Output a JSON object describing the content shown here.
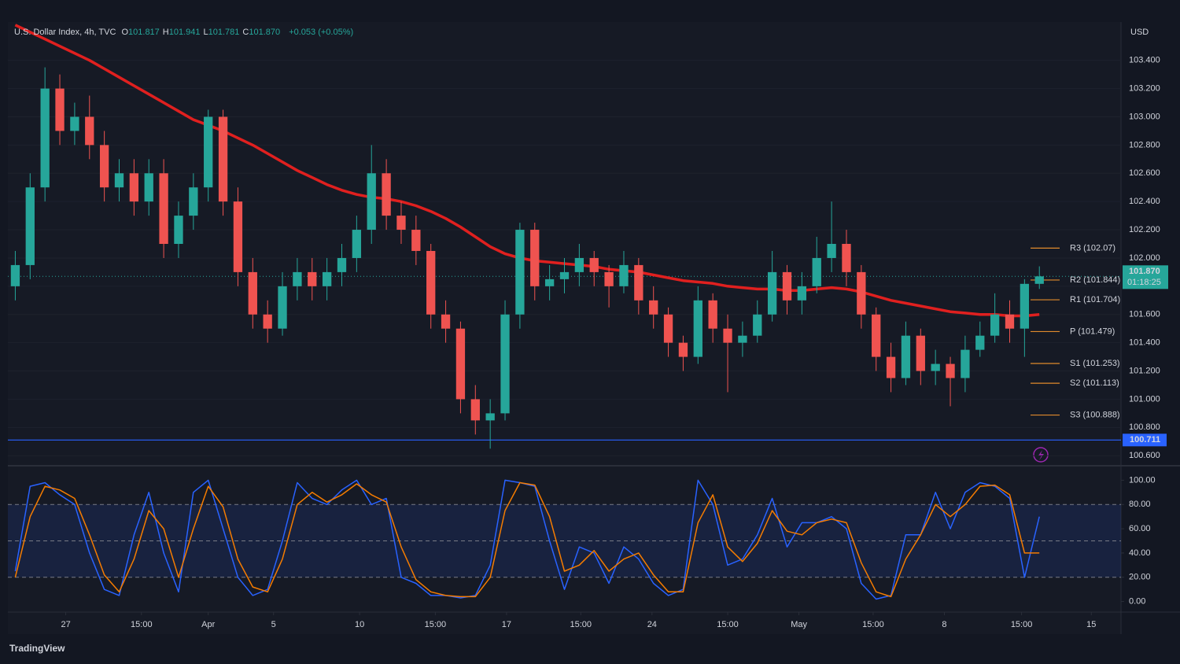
{
  "header": {
    "symbol": "U.S. Dollar Index, 4h, TVC",
    "ohlc": [
      {
        "key": "O",
        "text": "101.817"
      },
      {
        "key": "H",
        "text": "101.941"
      },
      {
        "key": "L",
        "text": "101.781"
      },
      {
        "key": "C",
        "text": "101.870"
      }
    ],
    "change": "+0.053 (+0.05%)"
  },
  "footer": {
    "brand": "TradingView"
  },
  "chart_data": [
    {
      "type": "candlestick",
      "currency": "USD",
      "up_color": "#26a69a",
      "down_color": "#ef5350",
      "candles": [
        [
          101.8,
          102.05,
          101.7,
          101.95
        ],
        [
          101.95,
          102.6,
          101.85,
          102.5
        ],
        [
          102.5,
          103.35,
          102.4,
          103.2
        ],
        [
          103.2,
          103.3,
          102.8,
          102.9
        ],
        [
          102.9,
          103.1,
          102.8,
          103.0
        ],
        [
          103.0,
          103.15,
          102.7,
          102.8
        ],
        [
          102.8,
          102.9,
          102.4,
          102.5
        ],
        [
          102.5,
          102.7,
          102.4,
          102.6
        ],
        [
          102.6,
          102.7,
          102.3,
          102.4
        ],
        [
          102.4,
          102.7,
          102.3,
          102.6
        ],
        [
          102.6,
          102.7,
          102.0,
          102.1
        ],
        [
          102.1,
          102.4,
          102.0,
          102.3
        ],
        [
          102.3,
          102.6,
          102.2,
          102.5
        ],
        [
          102.5,
          103.05,
          102.4,
          103.0
        ],
        [
          103.0,
          103.05,
          102.3,
          102.4
        ],
        [
          102.4,
          102.5,
          101.8,
          101.9
        ],
        [
          101.9,
          102.0,
          101.5,
          101.6
        ],
        [
          101.6,
          101.7,
          101.4,
          101.5
        ],
        [
          101.5,
          101.9,
          101.45,
          101.8
        ],
        [
          101.8,
          102.0,
          101.7,
          101.9
        ],
        [
          101.9,
          102.0,
          101.7,
          101.8
        ],
        [
          101.8,
          102.0,
          101.7,
          101.9
        ],
        [
          101.9,
          102.1,
          101.8,
          102.0
        ],
        [
          102.0,
          102.3,
          101.9,
          102.2
        ],
        [
          102.2,
          102.8,
          102.1,
          102.6
        ],
        [
          102.6,
          102.7,
          102.2,
          102.3
        ],
        [
          102.3,
          102.4,
          102.1,
          102.2
        ],
        [
          102.2,
          102.3,
          101.95,
          102.05
        ],
        [
          102.05,
          102.1,
          101.5,
          101.6
        ],
        [
          101.6,
          101.7,
          101.4,
          101.5
        ],
        [
          101.5,
          101.55,
          100.9,
          101.0
        ],
        [
          101.0,
          101.1,
          100.75,
          100.85
        ],
        [
          100.85,
          101.0,
          100.65,
          100.9
        ],
        [
          100.9,
          101.7,
          100.85,
          101.6
        ],
        [
          101.6,
          102.25,
          101.5,
          102.2
        ],
        [
          102.2,
          102.25,
          101.7,
          101.8
        ],
        [
          101.8,
          101.95,
          101.7,
          101.85
        ],
        [
          101.85,
          102.0,
          101.75,
          101.9
        ],
        [
          101.9,
          102.1,
          101.8,
          102.0
        ],
        [
          102.0,
          102.05,
          101.8,
          101.9
        ],
        [
          101.9,
          101.95,
          101.65,
          101.8
        ],
        [
          101.8,
          102.05,
          101.75,
          101.95
        ],
        [
          101.95,
          102.0,
          101.6,
          101.7
        ],
        [
          101.7,
          101.8,
          101.5,
          101.6
        ],
        [
          101.6,
          101.65,
          101.3,
          101.4
        ],
        [
          101.4,
          101.45,
          101.2,
          101.3
        ],
        [
          101.3,
          101.8,
          101.25,
          101.7
        ],
        [
          101.7,
          101.75,
          101.4,
          101.5
        ],
        [
          101.5,
          101.6,
          101.05,
          101.4
        ],
        [
          101.4,
          101.55,
          101.3,
          101.45
        ],
        [
          101.45,
          101.7,
          101.4,
          101.6
        ],
        [
          101.6,
          102.05,
          101.55,
          101.9
        ],
        [
          101.9,
          101.95,
          101.6,
          101.7
        ],
        [
          101.7,
          101.9,
          101.6,
          101.8
        ],
        [
          101.8,
          102.15,
          101.75,
          102.0
        ],
        [
          102.0,
          102.4,
          101.9,
          102.1
        ],
        [
          102.1,
          102.2,
          101.8,
          101.9
        ],
        [
          101.9,
          101.95,
          101.5,
          101.6
        ],
        [
          101.6,
          101.65,
          101.2,
          101.3
        ],
        [
          101.3,
          101.4,
          101.05,
          101.15
        ],
        [
          101.15,
          101.55,
          101.1,
          101.45
        ],
        [
          101.45,
          101.5,
          101.1,
          101.2
        ],
        [
          101.2,
          101.35,
          101.1,
          101.25
        ],
        [
          101.25,
          101.3,
          100.95,
          101.15
        ],
        [
          101.15,
          101.45,
          101.05,
          101.35
        ],
        [
          101.35,
          101.55,
          101.3,
          101.45
        ],
        [
          101.45,
          101.75,
          101.4,
          101.6
        ],
        [
          101.6,
          101.7,
          101.4,
          101.5
        ],
        [
          101.5,
          101.85,
          101.3,
          101.817
        ],
        [
          101.817,
          101.941,
          101.781,
          101.87
        ]
      ],
      "series": [
        {
          "color": "#e0201f",
          "values": [
            103.65,
            103.6,
            103.55,
            103.5,
            103.45,
            103.4,
            103.34,
            103.28,
            103.22,
            103.16,
            103.1,
            103.04,
            102.98,
            102.94,
            102.9,
            102.85,
            102.8,
            102.74,
            102.68,
            102.62,
            102.57,
            102.52,
            102.48,
            102.45,
            102.43,
            102.42,
            102.4,
            102.37,
            102.33,
            102.28,
            102.22,
            102.15,
            102.08,
            102.03,
            102.0,
            101.98,
            101.97,
            101.96,
            101.95,
            101.94,
            101.92,
            101.91,
            101.9,
            101.88,
            101.86,
            101.84,
            101.83,
            101.82,
            101.8,
            101.79,
            101.78,
            101.78,
            101.77,
            101.77,
            101.78,
            101.79,
            101.78,
            101.76,
            101.73,
            101.7,
            101.68,
            101.66,
            101.64,
            101.62,
            101.61,
            101.6,
            101.6,
            101.59,
            101.59,
            101.6
          ]
        }
      ],
      "xlim": [
        0,
        75
      ],
      "ylim": [
        100.54,
        103.66
      ],
      "yticks": [
        {
          "value": 100.6,
          "label": "100.600"
        },
        {
          "value": 100.8,
          "label": "100.800"
        },
        {
          "value": 101.0,
          "label": "101.000"
        },
        {
          "value": 101.2,
          "label": "101.200"
        },
        {
          "value": 101.4,
          "label": "101.400"
        },
        {
          "value": 101.6,
          "label": "101.600"
        },
        {
          "value": 101.8,
          "label": "101.800"
        },
        {
          "value": 102.0,
          "label": "102.000"
        },
        {
          "value": 102.2,
          "label": "102.200"
        },
        {
          "value": 102.4,
          "label": "102.400"
        },
        {
          "value": 102.6,
          "label": "102.600"
        },
        {
          "value": 102.8,
          "label": "102.800"
        },
        {
          "value": 103.0,
          "label": "103.000"
        },
        {
          "value": 103.2,
          "label": "103.200"
        },
        {
          "value": 103.4,
          "label": "103.400"
        }
      ],
      "pivot_color": "#e08a2c",
      "pivots": [
        {
          "value": 102.07,
          "label": "R3 (102.07)"
        },
        {
          "value": 101.844,
          "label": "R2 (101.844)"
        },
        {
          "value": 101.704,
          "label": "R1 (101.704)"
        },
        {
          "value": 101.479,
          "label": "P (101.479)"
        },
        {
          "value": 101.253,
          "label": "S1 (101.253)"
        },
        {
          "value": 101.113,
          "label": "S2 (101.113)"
        },
        {
          "value": 100.888,
          "label": "S3 (100.888)"
        }
      ],
      "hline": {
        "value": 100.711,
        "label": "100.711",
        "color": "#2962ff"
      },
      "last_price": {
        "value": 101.87,
        "label": "101.870",
        "countdown": "01:18:25",
        "color": "#26a69a"
      }
    },
    {
      "type": "line",
      "series": [
        {
          "color": "#2962ff",
          "values": [
            25,
            95,
            98,
            88,
            80,
            40,
            10,
            5,
            55,
            90,
            40,
            8,
            90,
            100,
            60,
            20,
            5,
            10,
            50,
            98,
            85,
            80,
            92,
            100,
            80,
            85,
            20,
            15,
            5,
            5,
            3,
            5,
            30,
            100,
            98,
            95,
            50,
            10,
            45,
            40,
            15,
            45,
            35,
            15,
            5,
            10,
            100,
            80,
            30,
            35,
            55,
            85,
            45,
            65,
            65,
            70,
            60,
            15,
            2,
            5,
            55,
            55,
            90,
            60,
            90,
            98,
            95,
            85,
            20,
            70
          ]
        },
        {
          "color": "#f57c00",
          "values": [
            20,
            70,
            95,
            92,
            85,
            55,
            22,
            8,
            35,
            75,
            60,
            20,
            60,
            95,
            78,
            35,
            12,
            8,
            35,
            80,
            90,
            82,
            88,
            97,
            88,
            82,
            45,
            18,
            8,
            5,
            4,
            4,
            20,
            75,
            98,
            96,
            70,
            25,
            30,
            42,
            25,
            35,
            40,
            22,
            8,
            8,
            65,
            88,
            45,
            33,
            48,
            75,
            58,
            55,
            65,
            68,
            65,
            32,
            8,
            4,
            35,
            55,
            80,
            70,
            80,
            95,
            96,
            88,
            40,
            40
          ]
        }
      ],
      "xlim": [
        0,
        75
      ],
      "ylim": [
        -10,
        110
      ],
      "yticks": [
        {
          "value": 0,
          "label": "0.00"
        },
        {
          "value": 20,
          "label": "20.00"
        },
        {
          "value": 40,
          "label": "40.00"
        },
        {
          "value": 60,
          "label": "60.00"
        },
        {
          "value": 80,
          "label": "80.00"
        },
        {
          "value": 100,
          "label": "100.00"
        }
      ],
      "bands": [
        20,
        50,
        80
      ],
      "band_fill": "#2962ff",
      "xticks": [
        {
          "value": 3.9,
          "label": "27"
        },
        {
          "value": 9.0,
          "label": "15:00"
        },
        {
          "value": 13.5,
          "label": "Apr"
        },
        {
          "value": 17.9,
          "label": "5"
        },
        {
          "value": 23.7,
          "label": "10"
        },
        {
          "value": 28.8,
          "label": "15:00"
        },
        {
          "value": 33.6,
          "label": "17"
        },
        {
          "value": 38.6,
          "label": "15:00"
        },
        {
          "value": 43.4,
          "label": "24"
        },
        {
          "value": 48.5,
          "label": "15:00"
        },
        {
          "value": 53.3,
          "label": "May"
        },
        {
          "value": 58.3,
          "label": "15:00"
        },
        {
          "value": 63.1,
          "label": "8"
        },
        {
          "value": 68.3,
          "label": "15:00"
        },
        {
          "value": 73.0,
          "label": "15"
        }
      ]
    }
  ]
}
